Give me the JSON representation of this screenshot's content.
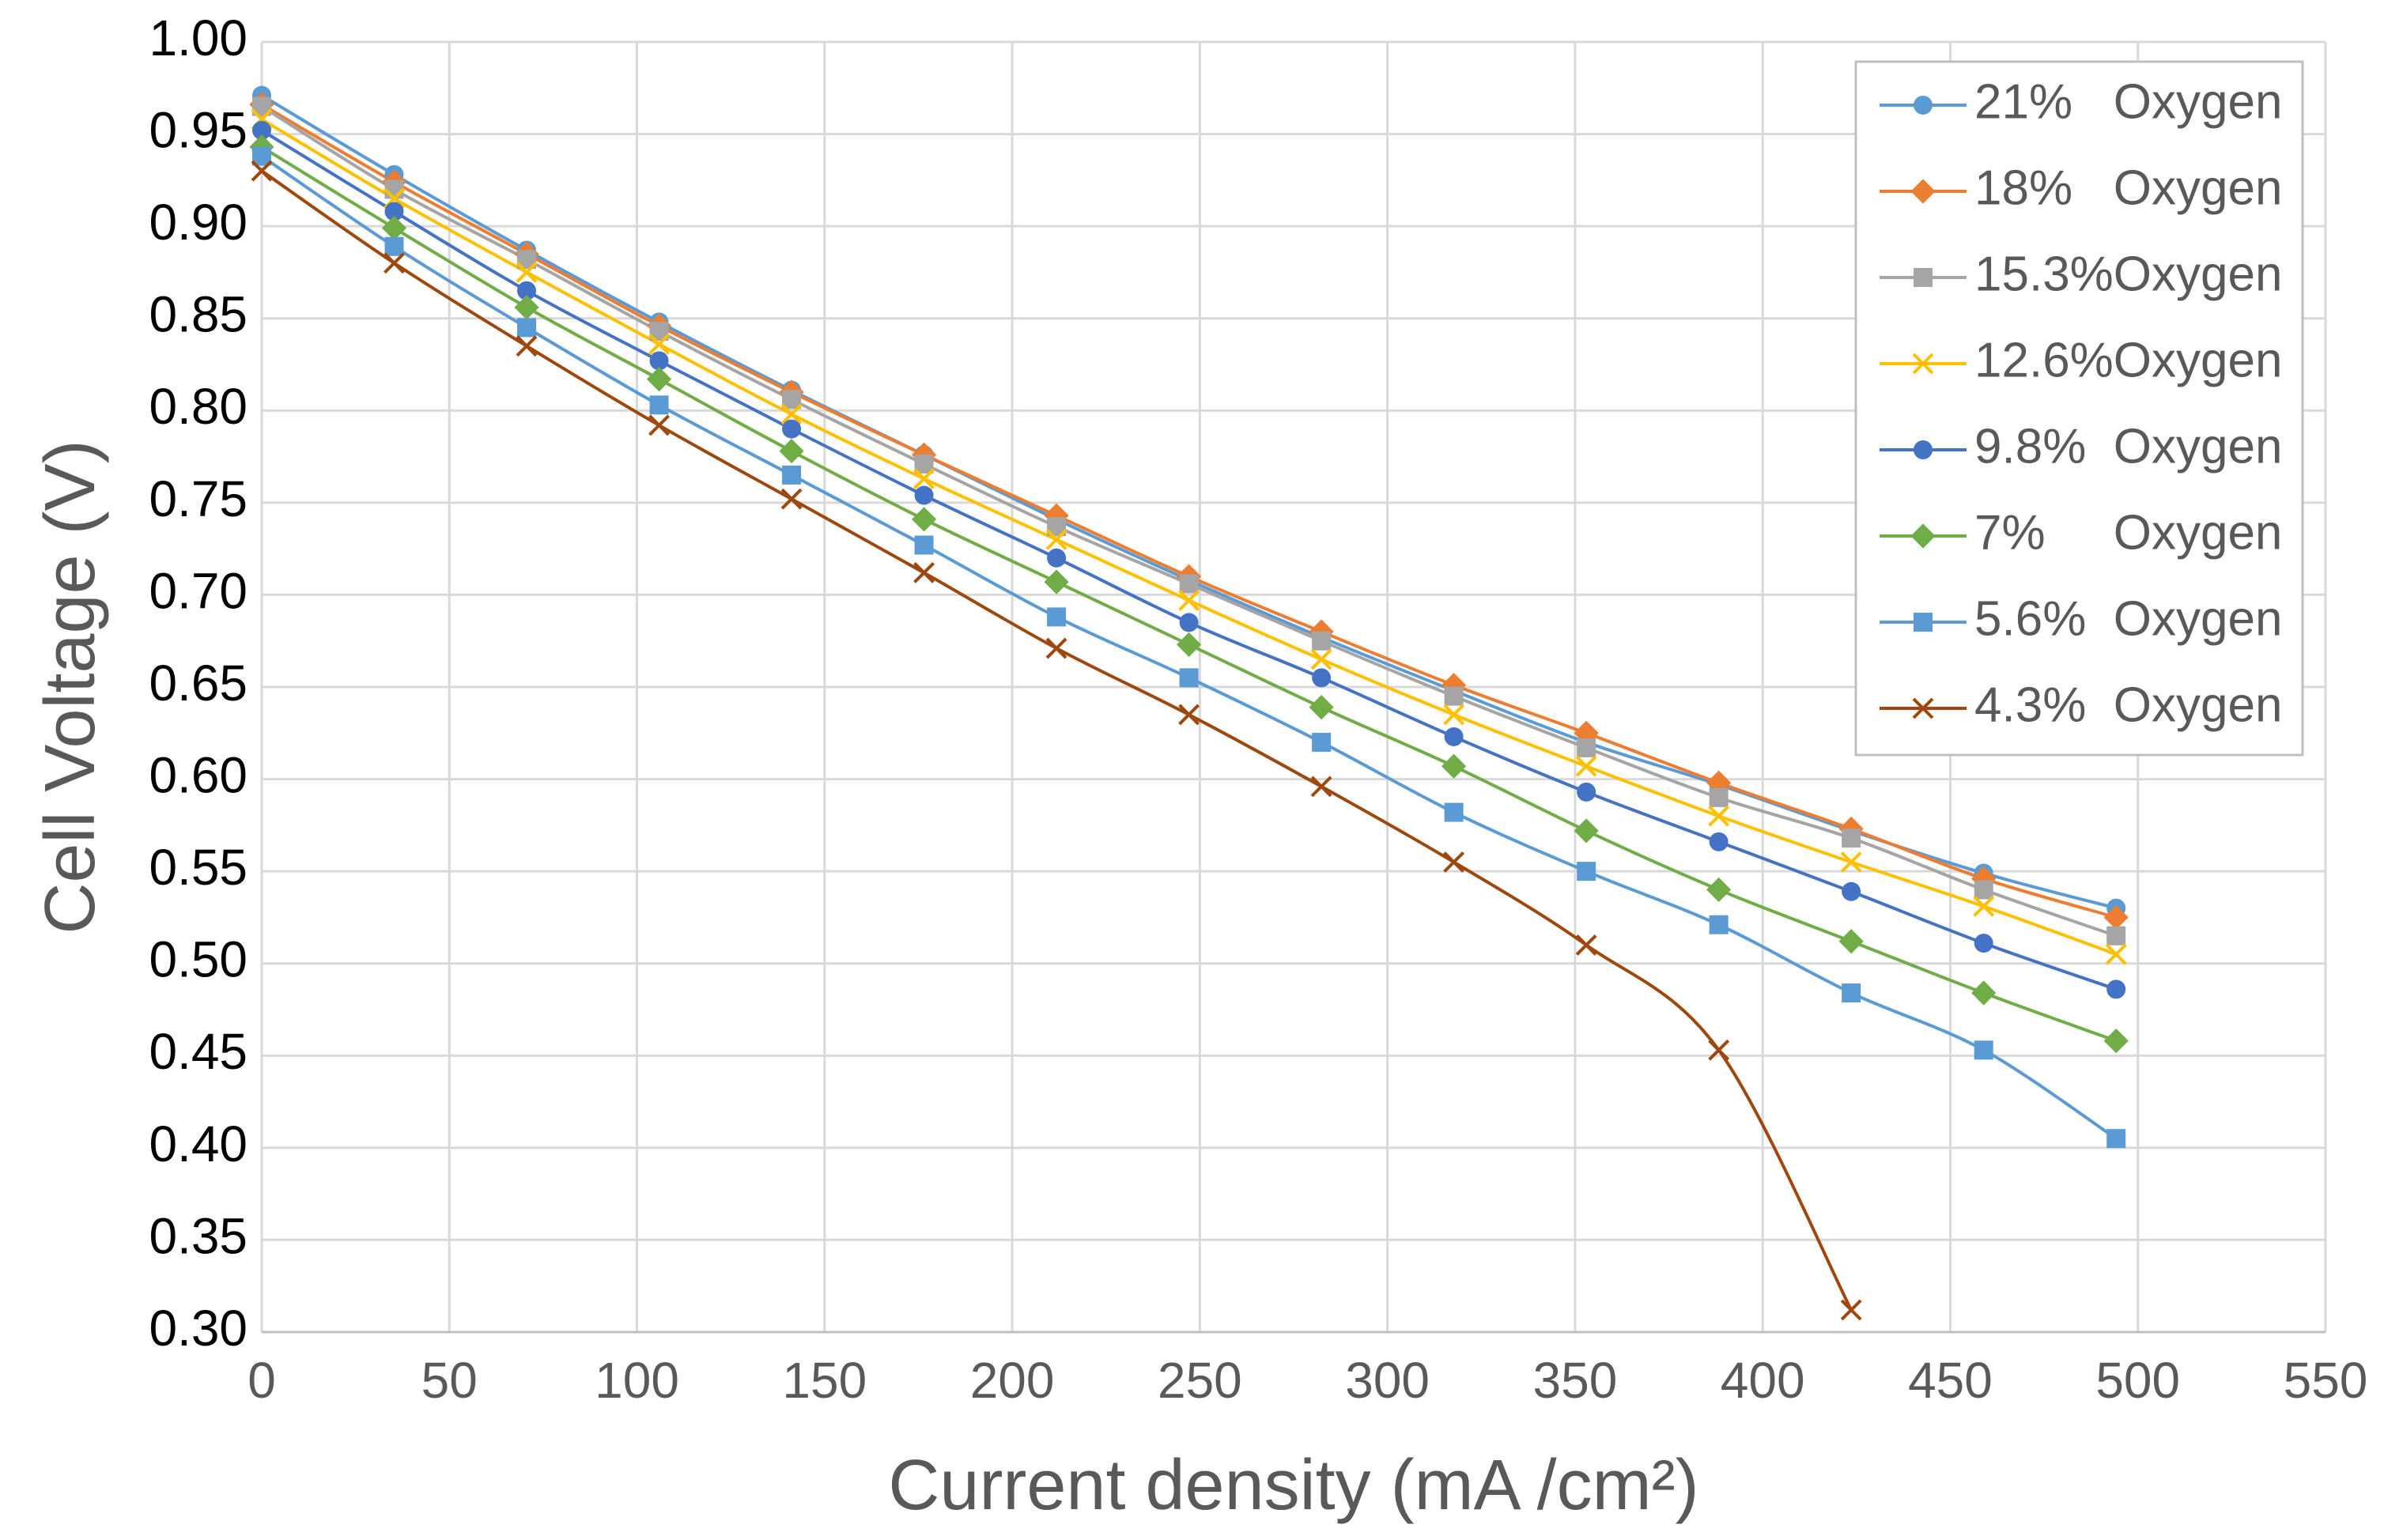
{
  "chart_data": {
    "type": "line",
    "xlabel": "Current density (mA /cm²)",
    "ylabel": "Cell Voltage (V)",
    "x": [
      0,
      35.3,
      70.6,
      105.9,
      141.2,
      176.5,
      211.8,
      247.1,
      282.4,
      317.7,
      353,
      388.3,
      423.6,
      458.9,
      494.2
    ],
    "series": [
      {
        "name": "21%   Oxygen",
        "color": "#5b9bd5",
        "marker": "circle",
        "values": [
          0.971,
          0.928,
          0.887,
          0.848,
          0.811,
          0.776,
          0.741,
          0.708,
          0.677,
          0.648,
          0.62,
          0.597,
          0.572,
          0.549,
          0.53
        ]
      },
      {
        "name": "18%   Oxygen",
        "color": "#ed7d31",
        "marker": "diamond",
        "values": [
          0.966,
          0.924,
          0.885,
          0.846,
          0.81,
          0.776,
          0.743,
          0.71,
          0.68,
          0.651,
          0.625,
          0.598,
          0.573,
          0.546,
          0.525
        ]
      },
      {
        "name": "15.3%Oxygen",
        "color": "#a5a5a5",
        "marker": "square",
        "values": [
          0.965,
          0.92,
          0.882,
          0.843,
          0.806,
          0.771,
          0.737,
          0.706,
          0.675,
          0.645,
          0.617,
          0.59,
          0.568,
          0.54,
          0.515
        ]
      },
      {
        "name": "12.6%Oxygen",
        "color": "#ffc000",
        "marker": "x",
        "values": [
          0.958,
          0.915,
          0.875,
          0.836,
          0.798,
          0.763,
          0.73,
          0.697,
          0.665,
          0.635,
          0.607,
          0.58,
          0.555,
          0.531,
          0.505
        ]
      },
      {
        "name": "9.8%  Oxygen",
        "color": "#4472c4",
        "marker": "circle",
        "values": [
          0.952,
          0.908,
          0.865,
          0.827,
          0.79,
          0.754,
          0.72,
          0.685,
          0.655,
          0.623,
          0.593,
          0.566,
          0.539,
          0.511,
          0.486
        ]
      },
      {
        "name": "7%     Oxygen",
        "color": "#70ad47",
        "marker": "diamond",
        "values": [
          0.943,
          0.899,
          0.856,
          0.817,
          0.778,
          0.741,
          0.707,
          0.673,
          0.639,
          0.607,
          0.572,
          0.54,
          0.512,
          0.484,
          0.458
        ]
      },
      {
        "name": "5.6%  Oxygen",
        "color": "#5b9bd5",
        "marker": "square",
        "values": [
          0.938,
          0.889,
          0.845,
          0.803,
          0.765,
          0.727,
          0.688,
          0.655,
          0.62,
          0.582,
          0.55,
          0.521,
          0.484,
          0.453,
          0.405
        ]
      },
      {
        "name": "4.3%  Oxygen",
        "color": "#9e480e",
        "marker": "x",
        "values": [
          0.93,
          0.88,
          0.835,
          0.792,
          0.752,
          0.712,
          0.671,
          0.635,
          0.596,
          0.555,
          0.51,
          0.453,
          0.312,
          null,
          null
        ]
      }
    ],
    "xlim": [
      0,
      550
    ],
    "xticks": [
      0,
      50,
      100,
      150,
      200,
      250,
      300,
      350,
      400,
      450,
      500,
      550
    ],
    "ylim": [
      0.3,
      1.0
    ],
    "yticks": [
      {
        "value": 0.3,
        "label": "0.30"
      },
      {
        "value": 0.35,
        "label": "0.35"
      },
      {
        "value": 0.4,
        "label": "0.40"
      },
      {
        "value": 0.45,
        "label": "0.45"
      },
      {
        "value": 0.5,
        "label": "0.50"
      },
      {
        "value": 0.55,
        "label": "0.55"
      },
      {
        "value": 0.6,
        "label": "0.60"
      },
      {
        "value": 0.65,
        "label": "0.65"
      },
      {
        "value": 0.7,
        "label": "0.70"
      },
      {
        "value": 0.75,
        "label": "0.75"
      },
      {
        "value": 0.8,
        "label": "0.80"
      },
      {
        "value": 0.85,
        "label": "0.85"
      },
      {
        "value": 0.9,
        "label": "0.90"
      },
      {
        "value": 0.95,
        "label": "0.95"
      },
      {
        "value": 1.0,
        "label": "1.00"
      }
    ],
    "grid": true,
    "smooth": true,
    "legend": "upper right"
  }
}
